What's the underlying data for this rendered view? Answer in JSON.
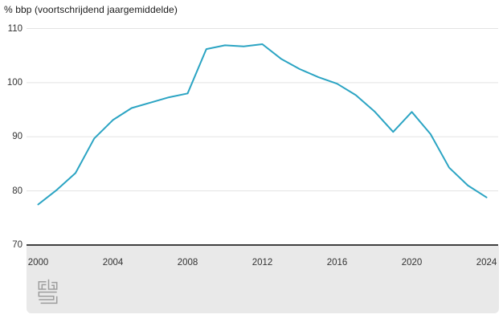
{
  "chart_data": {
    "type": "line",
    "title": "% bbp (voortschrijdend jaargemiddelde)",
    "x": [
      2000,
      2001,
      2002,
      2003,
      2004,
      2005,
      2006,
      2007,
      2008,
      2009,
      2010,
      2011,
      2012,
      2013,
      2014,
      2015,
      2016,
      2017,
      2018,
      2019,
      2020,
      2021,
      2022,
      2023,
      2024
    ],
    "values": [
      77.5,
      80.2,
      83.3,
      89.7,
      93.1,
      95.3,
      96.3,
      97.3,
      98.0,
      106.2,
      106.9,
      106.7,
      107.1,
      104.4,
      102.5,
      101.0,
      99.8,
      97.7,
      94.7,
      90.9,
      94.6,
      90.5,
      84.3,
      81.0,
      78.8
    ],
    "xlabel": "",
    "ylabel": "% bbp",
    "ylim": [
      70,
      110
    ],
    "yticks": [
      110,
      100,
      90,
      80,
      70
    ],
    "xticks": [
      2000,
      2004,
      2008,
      2012,
      2016,
      2020,
      2024
    ],
    "grid": true,
    "legend_position": "none"
  },
  "branding": {
    "logo": "cbs"
  },
  "colors": {
    "line": "#2ba4c3",
    "grid": "#e3e3e3",
    "axis": "#404040",
    "tick": "#7a7a7a",
    "band": "#e9e9e9",
    "text": "#333333",
    "logo": "#9d9d9d"
  }
}
